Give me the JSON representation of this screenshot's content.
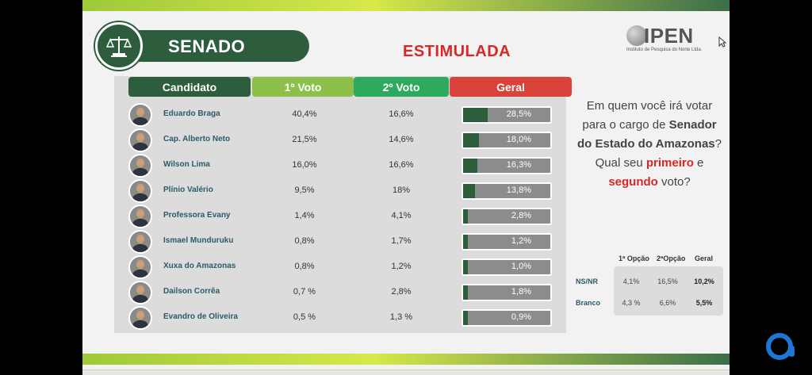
{
  "header": {
    "title": "SENADO",
    "subtitle": "ESTIMULADA",
    "logo_text": "IPEN",
    "logo_sub": "Instituto de Pesquisa do Norte Ltda."
  },
  "columns": {
    "candidato": "Candidato",
    "voto1": "1º Voto",
    "voto2": "2º Voto",
    "geral": "Geral"
  },
  "question": {
    "p1": "Em quem você irá votar para o cargo de",
    "p2": "Senador do Estado do Amazonas",
    "p3": "? Qual seu",
    "p4": "primeiro",
    "p5": "e",
    "p6": "segundo",
    "p7": "voto?"
  },
  "mini_table": {
    "headers": [
      "1ª Opção",
      "2ªOpção",
      "Geral"
    ],
    "rows": [
      {
        "label": "NS/NR",
        "values": [
          "4,1%",
          "16,5%",
          "10,2%"
        ]
      },
      {
        "label": "Branco",
        "values": [
          "4,3 %",
          "6,6%",
          "5,5%"
        ]
      }
    ]
  },
  "colors": {
    "dark_green": "#2e5d3e",
    "light_green": "#8dc04a",
    "mid_green": "#2eaa5f",
    "red": "#d9433a",
    "title_red": "#d62828"
  },
  "chart_data": {
    "type": "table",
    "categories": [
      "Eduardo Braga",
      "Cap. Alberto Neto",
      "Wilson Lima",
      "Plínio Valério",
      "Professora Evany",
      "Ismael Munduruku",
      "Xuxa do Amazonas",
      "Dailson Corrêa",
      "Evandro de Oliveira"
    ],
    "series": [
      {
        "name": "1º Voto",
        "labels": [
          "40,4%",
          "21,5%",
          "16,0%",
          "9,5%",
          "1,4%",
          "0,8%",
          "0,8%",
          "0,7 %",
          "0,5 %"
        ],
        "values": [
          40.4,
          21.5,
          16.0,
          9.5,
          1.4,
          0.8,
          0.8,
          0.7,
          0.5
        ]
      },
      {
        "name": "2º Voto",
        "labels": [
          "16,6%",
          "14,6%",
          "16,6%",
          "18%",
          "4,1%",
          "1,7%",
          "1,2%",
          "2,8%",
          "1,3 %"
        ],
        "values": [
          16.6,
          14.6,
          16.6,
          18,
          4.1,
          1.7,
          1.2,
          2.8,
          1.3
        ]
      },
      {
        "name": "Geral",
        "labels": [
          "28,5%",
          "18,0%",
          "16,3%",
          "13,8%",
          "2,8%",
          "1,2%",
          "1,0%",
          "1,8%",
          "0,9%"
        ],
        "values": [
          28.5,
          18.0,
          16.3,
          13.8,
          2.8,
          1.2,
          1.0,
          1.8,
          0.9
        ]
      }
    ],
    "geral_bar_max": 100
  }
}
